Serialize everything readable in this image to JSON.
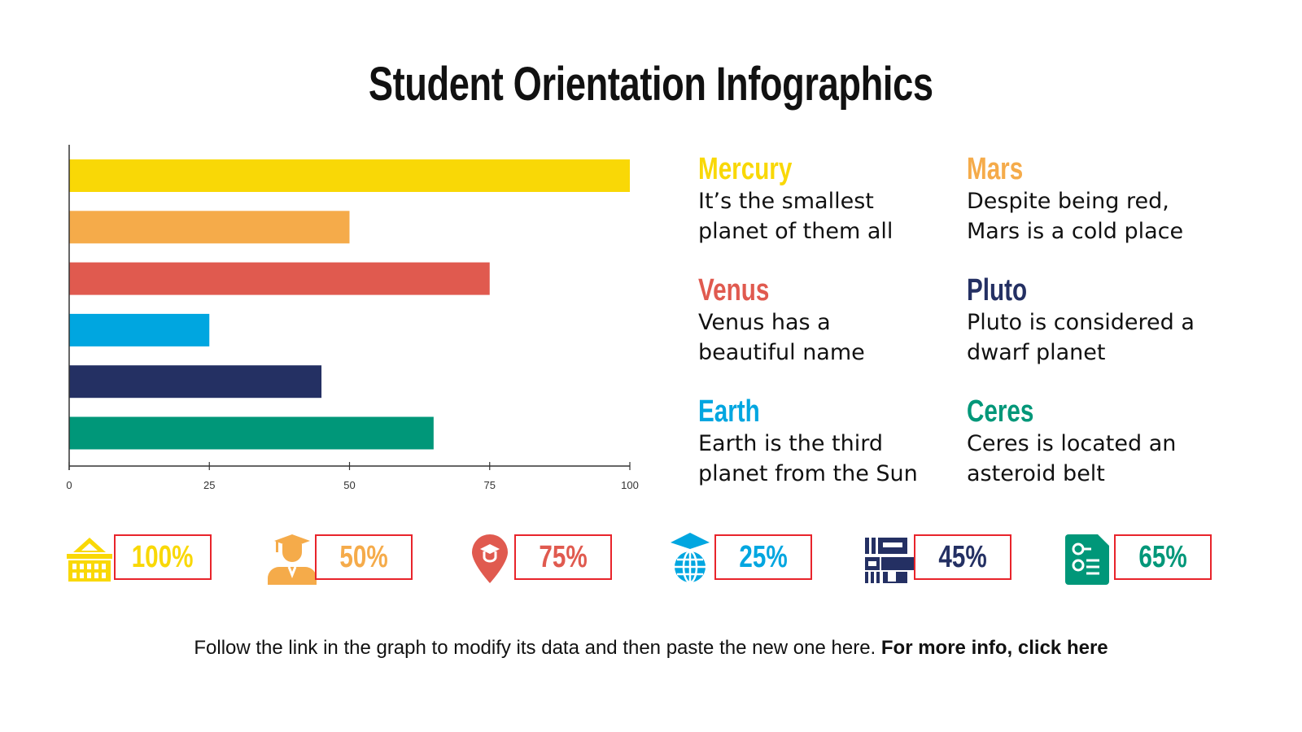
{
  "title": "Student Orientation Infographics",
  "chart_data": {
    "type": "bar",
    "orientation": "horizontal",
    "categories": [
      "Mercury",
      "Mars",
      "Venus",
      "Earth",
      "Pluto",
      "Ceres"
    ],
    "values": [
      100,
      50,
      75,
      25,
      45,
      65
    ],
    "colors": [
      "#F9D806",
      "#F5AB4A",
      "#E05A4F",
      "#00A6E0",
      "#243063",
      "#009779"
    ],
    "xlim": [
      0,
      100
    ],
    "xticks": [
      "0",
      "25",
      "50",
      "75",
      "100"
    ],
    "grid": false
  },
  "legend": [
    {
      "name": "Mercury",
      "desc1": "It’s the smallest",
      "desc2": "planet of them all",
      "color": "#F9D806"
    },
    {
      "name": "Mars",
      "desc1": "Despite being red,",
      "desc2": "Mars is a cold place",
      "color": "#F5AB4A"
    },
    {
      "name": "Venus",
      "desc1": "Venus has a",
      "desc2": "beautiful name",
      "color": "#E05A4F"
    },
    {
      "name": "Pluto",
      "desc1": "Pluto is considered a",
      "desc2": "dwarf planet",
      "color": "#243063"
    },
    {
      "name": "Earth",
      "desc1": "Earth is the third",
      "desc2": "planet from the Sun",
      "color": "#00A6E0"
    },
    {
      "name": "Ceres",
      "desc1": "Ceres is located an",
      "desc2": "asteroid belt",
      "color": "#009779"
    }
  ],
  "stats": [
    {
      "value": "100%",
      "icon": "school-building-icon",
      "color": "#F9D806"
    },
    {
      "value": "50%",
      "icon": "graduate-student-icon",
      "color": "#F5AB4A"
    },
    {
      "value": "75%",
      "icon": "location-pin-graduation-icon",
      "color": "#E05A4F"
    },
    {
      "value": "25%",
      "icon": "globe-graduation-cap-icon",
      "color": "#00A6E0"
    },
    {
      "value": "45%",
      "icon": "library-books-icon",
      "color": "#243063"
    },
    {
      "value": "65%",
      "icon": "document-list-icon",
      "color": "#009779"
    }
  ],
  "footer": {
    "text": "Follow the link in the graph to modify its data and then paste the new one here. ",
    "link": "For more info, click here"
  }
}
